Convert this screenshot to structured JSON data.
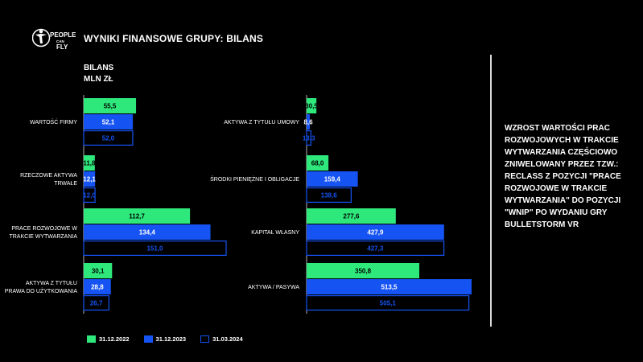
{
  "header": {
    "title": "WYNIKI FINANSOWE GRUPY: BILANS",
    "logo_text": "PEOPLE CAN FLY"
  },
  "subtitle": {
    "line1": "BILANS",
    "line2": "MLN ZŁ"
  },
  "note": "WZROST WARTOŚCI PRAC ROZWOJOWYCH W TRAKCIE WYTWARZANIA CZĘŚCIOWO ZNIWELOWANY PRZEZ TZW.: RECLASS Z POZYCJI \"PRACE ROZWOJOWE W TRAKCIE WYTWARZANIA\" DO POZYCJI \"WNIP\" PO WYDANIU GRY BULLETSTORM VR",
  "colors": {
    "green": "#2ee87c",
    "blue": "#1553f2",
    "outline": "#1553f2",
    "background": "#000000"
  },
  "chart_data": [
    {
      "type": "bar",
      "orientation": "horizontal",
      "categories": [
        "WARTOŚĆ FIRMY",
        "RZECZOWE AKTYWA TRWAŁE",
        "PRACE ROZWOJOWE W TRAKCIE WYTWARZANIA",
        "AKTYWA Z TYTUŁU PRAWA DO UŻYTKOWANIA"
      ],
      "series": [
        {
          "name": "31.12.2022",
          "values": [
            55.5,
            11.8,
            112.7,
            30.1
          ],
          "labels": [
            "55,5",
            "11,8",
            "112,7",
            "30,1"
          ]
        },
        {
          "name": "31.12.2023",
          "values": [
            52.1,
            12.1,
            134.4,
            28.8
          ],
          "labels": [
            "52,1",
            "12,1",
            "134,4",
            "28,8"
          ]
        },
        {
          "name": "31.03.2024",
          "values": [
            52.0,
            12.0,
            151.0,
            26.7
          ],
          "labels": [
            "52,0",
            "12,0",
            "151,0",
            "26,7"
          ]
        }
      ],
      "xlim": [
        0,
        151.0
      ]
    },
    {
      "type": "bar",
      "orientation": "horizontal",
      "categories": [
        "AKTYWA Z TYTUŁU UMOWY",
        "ŚRODKI PIENIĘŻNE I OBLIGACJE",
        "KAPITAŁ WŁASNY",
        "AKTYWA / PASYWA"
      ],
      "series": [
        {
          "name": "31.12.2022",
          "values": [
            30.5,
            68.0,
            277.6,
            350.8
          ],
          "labels": [
            "30,5",
            "68,0",
            "277,6",
            "350,8"
          ]
        },
        {
          "name": "31.12.2023",
          "values": [
            8.6,
            159.4,
            427.9,
            513.5
          ],
          "labels": [
            "8,6",
            "159,4",
            "427,9",
            "513,5"
          ]
        },
        {
          "name": "31.03.2024",
          "values": [
            13.3,
            138.6,
            427.3,
            505.1
          ],
          "labels": [
            "13,3",
            "138,6",
            "427,3",
            "505,1"
          ]
        }
      ],
      "xlim": [
        0,
        513.5
      ]
    }
  ],
  "legend": [
    "31.12.2022",
    "31.12.2023",
    "31.03.2024"
  ]
}
